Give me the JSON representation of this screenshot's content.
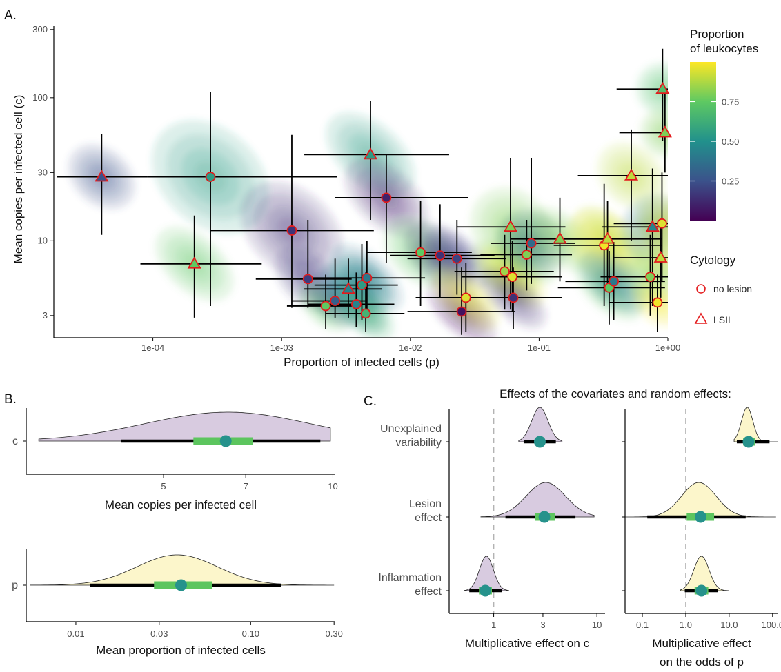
{
  "chart_data": [
    {
      "panel": "A.",
      "type": "scatter",
      "xlabel": "Proportion of infected cells (p)",
      "ylabel": "Mean copies per infected cell (c)",
      "x_scale": "log10",
      "y_scale": "log10",
      "xlim": [
        1.7e-05,
        1.0
      ],
      "ylim": [
        2.1,
        320
      ],
      "x_ticks": [
        "1e-04",
        "1e-03",
        "1e-02",
        "1e-01",
        "1e+00"
      ],
      "x_tick_values": [
        0.0001,
        0.001,
        0.01,
        0.1,
        1.0
      ],
      "y_ticks": [
        "3",
        "10",
        "30",
        "100",
        "300"
      ],
      "y_tick_values": [
        3,
        10,
        30,
        100,
        300
      ],
      "grid": false,
      "colorbar": {
        "title": [
          "Proportion",
          "of leukocytes"
        ],
        "ticks": [
          "0.25",
          "0.50",
          "0.75"
        ],
        "tick_values": [
          0.25,
          0.5,
          0.75
        ],
        "range": [
          0.0,
          1.0
        ],
        "palette": [
          "#440154",
          "#3b528b",
          "#21918c",
          "#5ec962",
          "#fde725"
        ]
      },
      "legend": {
        "title": "Cytology",
        "entries": [
          {
            "label": "no lesion",
            "shape": "circle"
          },
          {
            "label": "LSIL",
            "shape": "triangle"
          }
        ],
        "outline_color": "#e31a1c"
      },
      "points": [
        {
          "p": 4e-05,
          "c": 28,
          "x_lo": 1.8e-05,
          "x_hi": 9e-05,
          "y_lo": 11,
          "y_hi": 56,
          "leuk": 0.25,
          "shape": "triangle"
        },
        {
          "p": 0.00028,
          "c": 28,
          "x_lo": 9e-05,
          "x_hi": 0.0027,
          "y_lo": 3.5,
          "y_hi": 110,
          "leuk": 0.55,
          "shape": "circle"
        },
        {
          "p": 0.00021,
          "c": 6.9,
          "x_lo": 8e-05,
          "x_hi": 0.0007,
          "y_lo": 2.9,
          "y_hi": 15,
          "leuk": 0.75,
          "shape": "triangle"
        },
        {
          "p": 0.0012,
          "c": 11.8,
          "x_lo": 0.00028,
          "x_hi": 0.0052,
          "y_lo": 3.4,
          "y_hi": 55,
          "leuk": 0.15,
          "shape": "circle"
        },
        {
          "p": 0.0016,
          "c": 5.4,
          "x_lo": 0.00063,
          "x_hi": 0.0035,
          "y_lo": 3.4,
          "y_hi": 14,
          "leuk": 0.18,
          "shape": "circle"
        },
        {
          "p": 0.0022,
          "c": 3.5,
          "x_lo": 0.0011,
          "x_hi": 0.0038,
          "y_lo": 2.4,
          "y_hi": 5.8,
          "leuk": 0.75,
          "shape": "circle"
        },
        {
          "p": 0.0026,
          "c": 3.8,
          "x_lo": 0.0012,
          "x_hi": 0.0045,
          "y_lo": 2.9,
          "y_hi": 7.5,
          "leuk": 0.3,
          "shape": "circle"
        },
        {
          "p": 0.0033,
          "c": 4.6,
          "x_lo": 0.0015,
          "x_hi": 0.006,
          "y_lo": 2.9,
          "y_hi": 7.5,
          "leuk": 0.45,
          "shape": "triangle"
        },
        {
          "p": 0.0038,
          "c": 3.6,
          "x_lo": 0.0016,
          "x_hi": 0.0075,
          "y_lo": 2.5,
          "y_hi": 6,
          "leuk": 0.45,
          "shape": "circle"
        },
        {
          "p": 0.0042,
          "c": 4.9,
          "x_lo": 0.0018,
          "x_hi": 0.008,
          "y_lo": 2.8,
          "y_hi": 9.5,
          "leuk": 0.55,
          "shape": "circle"
        },
        {
          "p": 0.0045,
          "c": 3.1,
          "x_lo": 0.0022,
          "x_hi": 0.009,
          "y_lo": 2.3,
          "y_hi": 6,
          "leuk": 0.65,
          "shape": "circle"
        },
        {
          "p": 0.0046,
          "c": 5.5,
          "x_lo": 0.0017,
          "x_hi": 0.013,
          "y_lo": 3,
          "y_hi": 10,
          "leuk": 0.4,
          "shape": "circle"
        },
        {
          "p": 0.0049,
          "c": 40,
          "x_lo": 0.0015,
          "x_hi": 0.02,
          "y_lo": 14,
          "y_hi": 95,
          "leuk": 0.55,
          "shape": "triangle"
        },
        {
          "p": 0.0065,
          "c": 20,
          "x_lo": 0.0026,
          "x_hi": 0.028,
          "y_lo": 7,
          "y_hi": 40,
          "leuk": 0.1,
          "shape": "circle"
        },
        {
          "p": 0.012,
          "c": 8.3,
          "x_lo": 0.0045,
          "x_hi": 0.03,
          "y_lo": 3.5,
          "y_hi": 19,
          "leuk": 0.75,
          "shape": "circle"
        },
        {
          "p": 0.017,
          "c": 7.9,
          "x_lo": 0.007,
          "x_hi": 0.045,
          "y_lo": 4,
          "y_hi": 18,
          "leuk": 0.15,
          "shape": "circle"
        },
        {
          "p": 0.023,
          "c": 7.5,
          "x_lo": 0.0095,
          "x_hi": 0.055,
          "y_lo": 4.2,
          "y_hi": 14,
          "leuk": 0.2,
          "shape": "circle"
        },
        {
          "p": 0.025,
          "c": 3.2,
          "x_lo": 0.0095,
          "x_hi": 0.065,
          "y_lo": 2.2,
          "y_hi": 6.5,
          "leuk": 0.05,
          "shape": "circle"
        },
        {
          "p": 0.027,
          "c": 4.0,
          "x_lo": 0.011,
          "x_hi": 0.07,
          "y_lo": 2.3,
          "y_hi": 7,
          "leuk": 0.95,
          "shape": "circle"
        },
        {
          "p": 0.054,
          "c": 6.1,
          "x_lo": 0.022,
          "x_hi": 0.13,
          "y_lo": 3.3,
          "y_hi": 11,
          "leuk": 0.85,
          "shape": "circle"
        },
        {
          "p": 0.06,
          "c": 12.5,
          "x_lo": 0.023,
          "x_hi": 0.16,
          "y_lo": 3.3,
          "y_hi": 38,
          "leuk": 0.8,
          "shape": "triangle"
        },
        {
          "p": 0.062,
          "c": 5.6,
          "x_lo": 0.025,
          "x_hi": 0.15,
          "y_lo": 3.2,
          "y_hi": 10,
          "leuk": 0.95,
          "shape": "circle"
        },
        {
          "p": 0.063,
          "c": 4.0,
          "x_lo": 0.025,
          "x_hi": 0.15,
          "y_lo": 2.4,
          "y_hi": 6.5,
          "leuk": 0.15,
          "shape": "circle"
        },
        {
          "p": 0.08,
          "c": 8.0,
          "x_lo": 0.035,
          "x_hi": 0.18,
          "y_lo": 4.5,
          "y_hi": 14,
          "leuk": 0.8,
          "shape": "circle"
        },
        {
          "p": 0.087,
          "c": 9.6,
          "x_lo": 0.042,
          "x_hi": 0.19,
          "y_lo": 5,
          "y_hi": 38,
          "leuk": 0.35,
          "shape": "circle"
        },
        {
          "p": 0.145,
          "c": 10.3,
          "x_lo": 0.06,
          "x_hi": 0.35,
          "y_lo": 5.2,
          "y_hi": 20,
          "leuk": 0.8,
          "shape": "triangle"
        },
        {
          "p": 0.32,
          "c": 9.3,
          "x_lo": 0.13,
          "x_hi": 0.9,
          "y_lo": 3.5,
          "y_hi": 25,
          "leuk": 0.98,
          "shape": "circle"
        },
        {
          "p": 0.34,
          "c": 10.3,
          "x_lo": 0.14,
          "x_hi": 0.9,
          "y_lo": 5,
          "y_hi": 19,
          "leuk": 0.9,
          "shape": "triangle"
        },
        {
          "p": 0.35,
          "c": 4.7,
          "x_lo": 0.14,
          "x_hi": 0.95,
          "y_lo": 2.6,
          "y_hi": 8.5,
          "leuk": 0.75,
          "shape": "circle"
        },
        {
          "p": 0.38,
          "c": 5.2,
          "x_lo": 0.16,
          "x_hi": 0.95,
          "y_lo": 2.8,
          "y_hi": 9.8,
          "leuk": 0.4,
          "shape": "circle"
        },
        {
          "p": 0.52,
          "c": 28.5,
          "x_lo": 0.2,
          "x_hi": 1.0,
          "y_lo": 10,
          "y_hi": 60,
          "leuk": 0.9,
          "shape": "triangle"
        },
        {
          "p": 0.73,
          "c": 5.6,
          "x_lo": 0.3,
          "x_hi": 1.0,
          "y_lo": 3,
          "y_hi": 11,
          "leuk": 0.8,
          "shape": "circle"
        },
        {
          "p": 0.76,
          "c": 12.5,
          "x_lo": 0.31,
          "x_hi": 1.0,
          "y_lo": 3.5,
          "y_hi": 32,
          "leuk": 0.45,
          "shape": "triangle"
        },
        {
          "p": 0.83,
          "c": 3.7,
          "x_lo": 0.35,
          "x_hi": 1.0,
          "y_lo": 2.3,
          "y_hi": 5.8,
          "leuk": 0.98,
          "shape": "circle"
        },
        {
          "p": 0.88,
          "c": 7.6,
          "x_lo": 0.38,
          "x_hi": 1.0,
          "y_lo": 4,
          "y_hi": 14,
          "leuk": 0.9,
          "shape": "triangle"
        },
        {
          "p": 0.9,
          "c": 13.2,
          "x_lo": 0.38,
          "x_hi": 1.0,
          "y_lo": 5.2,
          "y_hi": 30,
          "leuk": 0.95,
          "shape": "circle"
        },
        {
          "p": 0.91,
          "c": 115,
          "x_lo": 0.4,
          "x_hi": 1.0,
          "y_lo": 50,
          "y_hi": 220,
          "leuk": 0.7,
          "shape": "triangle"
        },
        {
          "p": 0.95,
          "c": 57,
          "x_lo": 0.42,
          "x_hi": 1.0,
          "y_lo": 30,
          "y_hi": 110,
          "leuk": 0.8,
          "shape": "triangle"
        }
      ]
    },
    {
      "panel": "B.",
      "type": "density-interval",
      "xlabel": "Mean copies per infected cell",
      "x_scale": "log10",
      "xlim": [
        2.85,
        10.1
      ],
      "x_ticks": [
        "5",
        "7",
        "10"
      ],
      "x_tick_values": [
        5,
        7,
        10
      ],
      "category": "c",
      "fill": "#d8cbe0",
      "median": 6.45,
      "interval_66": [
        5.65,
        7.2
      ],
      "interval_95": [
        4.2,
        9.5
      ],
      "range": [
        3.0,
        9.9
      ],
      "peak": 6.5,
      "sd": 1.4
    },
    {
      "panel": "B.",
      "type": "density-interval",
      "xlabel": "Mean proportion of infected cells",
      "x_scale": "log10",
      "xlim": [
        0.0052,
        0.305
      ],
      "x_ticks": [
        "0.01",
        "0.03",
        "0.10",
        "0.30"
      ],
      "x_tick_values": [
        0.01,
        0.03,
        0.1,
        0.3
      ],
      "category": "p",
      "fill": "#fcf6cb",
      "median": 0.04,
      "interval_66": [
        0.028,
        0.06
      ],
      "interval_95": [
        0.012,
        0.15
      ],
      "range": [
        0.0055,
        0.3
      ],
      "peak": 0.038,
      "sd": 1.7
    },
    {
      "panel": "C.",
      "type": "density-interval",
      "title": "Effects of the covariates and random effects:",
      "xlabel": "Multiplicative effect on c",
      "x_scale": "log10",
      "xlim": [
        0.37,
        12
      ],
      "x_ticks": [
        "1",
        "3",
        "10"
      ],
      "x_tick_values": [
        1,
        3,
        10
      ],
      "reference_line": 1.0,
      "fill": "#d8cbe0",
      "categories": [
        [
          "Unexplained",
          "variability"
        ],
        [
          "Lesion",
          "effect"
        ],
        [
          "Inflammation",
          "effect"
        ]
      ],
      "series": [
        {
          "category": "Unexplained variability",
          "median": 2.8,
          "interval_66": [
            2.55,
            3.1
          ],
          "interval_95": [
            1.95,
            4.0
          ],
          "range": [
            1.75,
            4.6
          ],
          "peak": 2.8,
          "sd": 1.2
        },
        {
          "category": "Lesion effect",
          "median": 3.1,
          "interval_66": [
            2.5,
            3.9
          ],
          "interval_95": [
            1.3,
            6.2
          ],
          "range": [
            0.75,
            9.4
          ],
          "peak": 3.2,
          "sd": 1.55
        },
        {
          "category": "Inflammation effect",
          "median": 0.83,
          "interval_66": [
            0.72,
            0.96
          ],
          "interval_95": [
            0.58,
            1.2
          ],
          "range": [
            0.52,
            1.4
          ],
          "peak": 0.85,
          "sd": 1.17
        }
      ]
    },
    {
      "panel": "C.",
      "type": "density-interval",
      "xlabel": [
        "Multiplicative effect",
        "on the odds of p"
      ],
      "x_scale": "log10",
      "xlim": [
        0.04,
        135
      ],
      "x_ticks": [
        "0.1",
        "1.0",
        "10.0",
        "100.0"
      ],
      "x_tick_values": [
        0.1,
        1,
        10,
        100
      ],
      "reference_line": 1.0,
      "fill": "#fcf6cb",
      "series": [
        {
          "category": "Unexplained variability",
          "median": 28,
          "interval_66": [
            21,
            40
          ],
          "interval_95": [
            15,
            85
          ],
          "range": [
            13,
            135
          ],
          "peak": 26,
          "sd": 1.35
        },
        {
          "category": "Lesion effect",
          "median": 2.2,
          "interval_66": [
            1.05,
            4.5
          ],
          "interval_95": [
            0.13,
            24
          ],
          "range": [
            0.04,
            120
          ],
          "peak": 2.0,
          "sd": 2.5
        },
        {
          "category": "Inflammation effect",
          "median": 2.3,
          "interval_66": [
            1.6,
            3.3
          ],
          "interval_95": [
            0.95,
            5.5
          ],
          "range": [
            0.75,
            9.5
          ],
          "peak": 2.3,
          "sd": 1.5
        }
      ]
    }
  ],
  "colors": {
    "median_point": "#26928c",
    "interval_66": "#5cc55e",
    "interval_95": "#000000",
    "reference_line": "#b3b3b3",
    "density_line": "#222222",
    "marker_outline": "#e31a1c"
  }
}
